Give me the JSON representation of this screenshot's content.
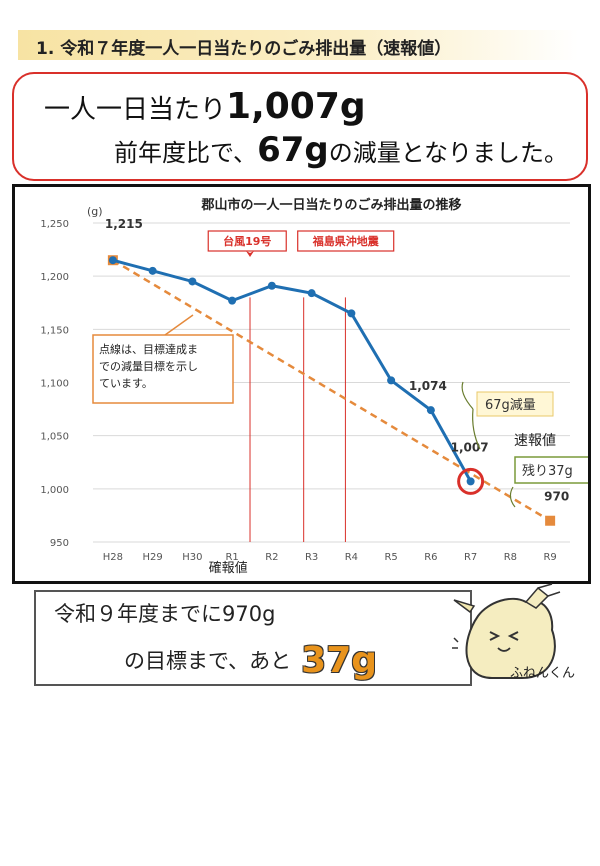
{
  "header": {
    "title": "1. 令和７年度一人一日当たりのごみ排出量（速報値）"
  },
  "summary": {
    "line1_prefix": "一人一日当たり",
    "line1_value": "1,007g",
    "line2_prefix": "前年度比で、",
    "line2_value": "67g",
    "line2_suffix": "の減量となりました。"
  },
  "chart_data": {
    "type": "line",
    "title": "郡山市の一人一日当たりのごみ排出量の推移",
    "ylabel": "(g)",
    "ylim": [
      950,
      1250
    ],
    "yticks": [
      "950",
      "1,000",
      "1,050",
      "1,100",
      "1,150",
      "1,200",
      "1,250"
    ],
    "categories": [
      "H28",
      "H29",
      "H30",
      "R1",
      "R2",
      "R3",
      "R4",
      "R5",
      "R6",
      "R7",
      "R8",
      "R9"
    ],
    "series": [
      {
        "values": [
          1215,
          1205,
          1195,
          1177,
          1191,
          1184,
          1165,
          1102,
          1074,
          1007,
          null,
          null
        ],
        "color": "#1f6fb2"
      }
    ],
    "target_line": {
      "from": [
        "H28",
        1215
      ],
      "to": [
        "R9",
        970
      ],
      "color": "#e58a3c"
    },
    "events": [
      {
        "label": "台風19号",
        "at": "R1"
      },
      {
        "label": "福島県沖地震",
        "at": "R3"
      },
      {
        "label": "福島県沖地震",
        "at": "R4"
      }
    ],
    "data_labels": [
      {
        "text": "1,215",
        "category": "H28",
        "value": 1215
      },
      {
        "text": "1,074",
        "category": "R6",
        "value": 1074
      },
      {
        "text": "1,007",
        "category": "R7",
        "value": 1007
      },
      {
        "text": "970",
        "category": "R9",
        "value": 970
      }
    ],
    "annotations": {
      "note": [
        "点線は、目標達成ま",
        "での減量目標を示し",
        "ています。"
      ],
      "reduction": "67g減量",
      "preliminary": "速報値",
      "remaining": "残り37g",
      "confirmed": "確報値"
    },
    "colors": {
      "event": "#d9302a",
      "grid": "#d9d9d9"
    }
  },
  "goal": {
    "line1": "令和９年度までに970g",
    "line2_prefix": "の目標まで、あと",
    "line2_value": "37g"
  },
  "mascot": {
    "name": "ふねんくん"
  }
}
